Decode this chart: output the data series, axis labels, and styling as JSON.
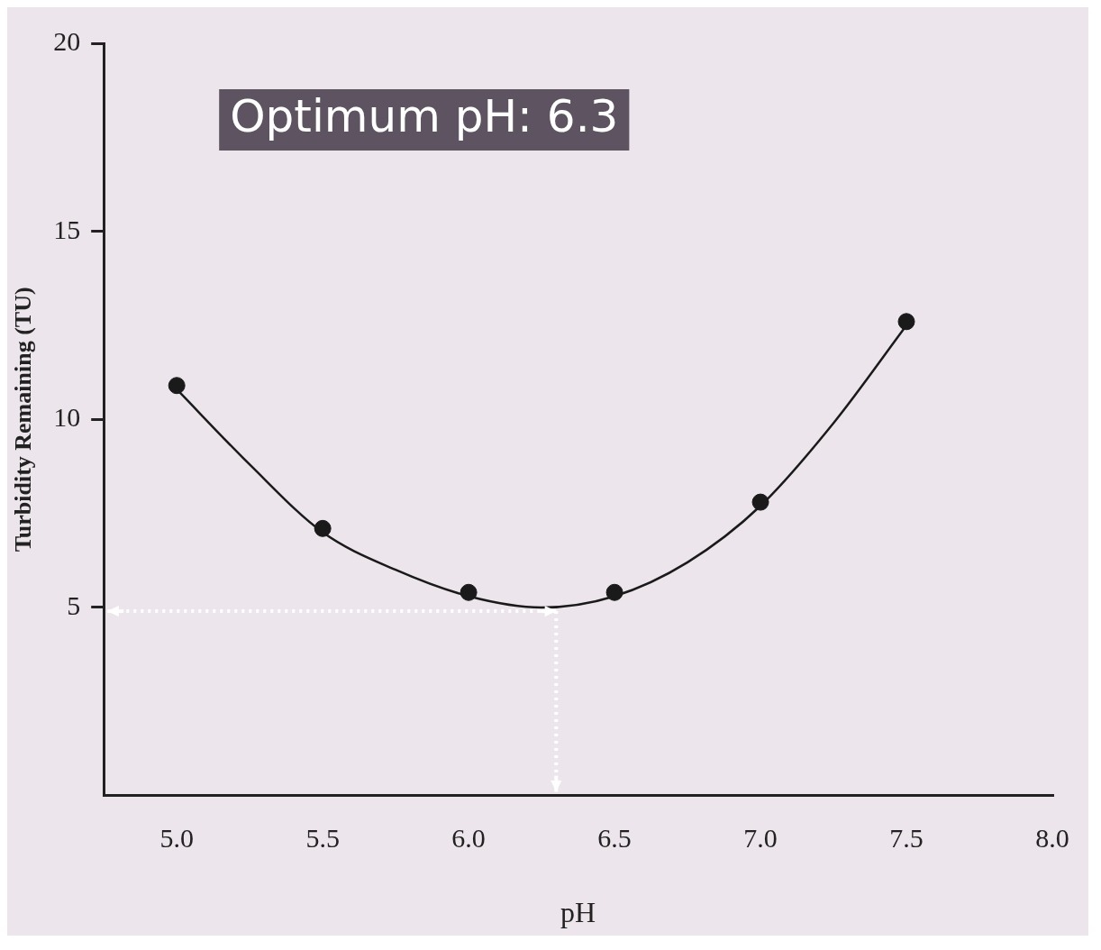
{
  "chart_data": {
    "type": "scatter",
    "xlabel": "pH",
    "ylabel": "Turbidity Remaining (TU)",
    "annotations": [
      "Optimum pH: 6.3"
    ],
    "x": [
      5.0,
      5.5,
      6.0,
      6.5,
      7.0,
      7.5
    ],
    "series": [
      {
        "color": "#1a1a1a",
        "values": [
          10.9,
          7.1,
          5.4,
          5.4,
          7.8,
          12.6
        ]
      },
      {
        "type": "line",
        "color": "#1a1a1a",
        "marker": "none",
        "x": [
          5.0,
          5.25,
          5.5,
          5.75,
          6.0,
          6.25,
          6.5,
          6.75,
          7.0,
          7.25,
          7.5
        ],
        "values": [
          10.8,
          8.8,
          7.0,
          6.0,
          5.3,
          5.0,
          5.3,
          6.2,
          7.7,
          9.9,
          12.5
        ]
      }
    ],
    "xlim": [
      4.75,
      8.0
    ],
    "xticks": [
      {
        "value": 5,
        "label": "5.0"
      },
      {
        "value": 5.5,
        "label": "5.5"
      },
      {
        "value": 6,
        "label": "6.0"
      },
      {
        "value": 6.5,
        "label": "6.5"
      },
      {
        "value": 7,
        "label": "7.0"
      },
      {
        "value": 7.5,
        "label": "7.5"
      },
      {
        "value": 8,
        "label": "8.0"
      }
    ],
    "ylim": [
      0,
      20
    ],
    "yticks": [
      5,
      10,
      15,
      20
    ],
    "grid": false,
    "legend": false,
    "marker": "circle",
    "ref_lines": [
      {
        "axis": "x",
        "value": 6.3,
        "color": "#ffffff",
        "line_style": "dotted"
      },
      {
        "axis": "y",
        "value": 4.9,
        "color": "#ffffff",
        "line_style": "dotted"
      }
    ]
  }
}
